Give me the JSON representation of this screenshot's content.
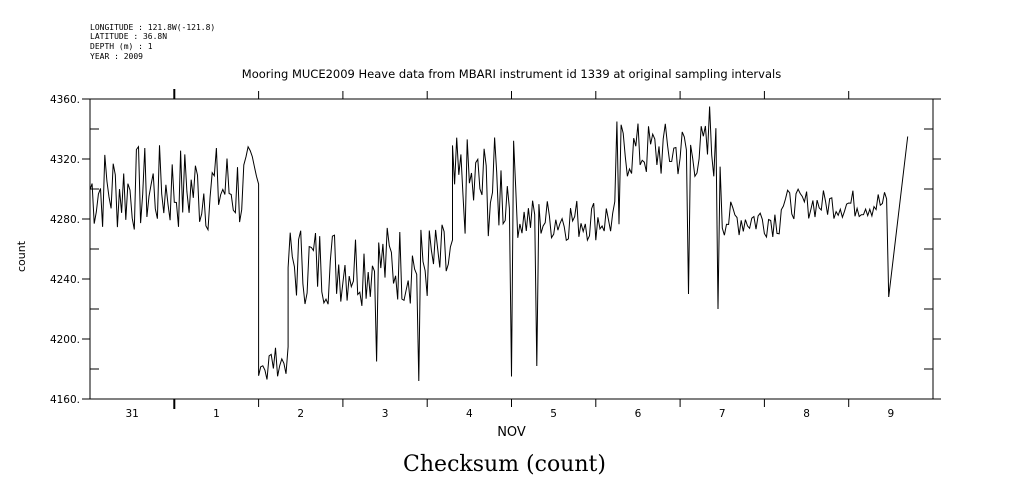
{
  "header": {
    "longitude": "LONGITUDE : 121.8W(-121.8)",
    "latitude": "LATITUDE : 36.8N",
    "depth": "DEPTH (m) : 1",
    "year": "YEAR : 2009"
  },
  "caption": "Checksum (count)",
  "chart_data": {
    "type": "line",
    "title": "Mooring MUCE2009 Heave data from MBARI instrument id 1339 at original sampling intervals",
    "xlabel": "NOV",
    "ylabel": "count",
    "categories": [
      "31",
      "1",
      "2",
      "3",
      "4",
      "5",
      "6",
      "7",
      "8",
      "9"
    ],
    "x_range_days": [
      0,
      10
    ],
    "ylim": [
      4160,
      4360
    ],
    "yticks": [
      4160,
      4200,
      4240,
      4280,
      4320,
      4360
    ],
    "ytick_labels": [
      "4160.",
      "4200.",
      "4240.",
      "4280.",
      "4320.",
      "4360."
    ],
    "grid": false,
    "series": [
      {
        "segments": [
          {
            "x0": 0.0,
            "x1": 2.0,
            "base": 4300,
            "amp": 30
          },
          {
            "x0": 2.0,
            "x1": 2.35,
            "base": 4185,
            "amp": 10
          },
          {
            "x0": 2.35,
            "x1": 4.3,
            "base": 4250,
            "amp": 28
          },
          {
            "x0": 4.3,
            "x1": 5.1,
            "base": 4300,
            "amp": 35
          },
          {
            "x0": 5.1,
            "x1": 6.3,
            "base": 4280,
            "amp": 15
          },
          {
            "x0": 6.3,
            "x1": 7.5,
            "base": 4325,
            "amp": 20
          },
          {
            "x0": 7.5,
            "x1": 8.2,
            "base": 4280,
            "amp": 12
          },
          {
            "x0": 8.2,
            "x1": 9.5,
            "base": 4290,
            "amp": 10
          }
        ],
        "dips": [
          {
            "x": 2.1,
            "value": 4173
          },
          {
            "x": 3.4,
            "value": 4185
          },
          {
            "x": 3.9,
            "value": 4172
          },
          {
            "x": 5.0,
            "value": 4175
          },
          {
            "x": 5.3,
            "value": 4182
          },
          {
            "x": 7.1,
            "value": 4230
          },
          {
            "x": 7.45,
            "value": 4220
          },
          {
            "x": 9.55,
            "value": 4228
          }
        ],
        "peaks": [
          {
            "x": 7.35,
            "value": 4355
          },
          {
            "x": 6.25,
            "value": 4345
          }
        ],
        "end_value": 4335,
        "end_x": 9.7
      }
    ]
  }
}
